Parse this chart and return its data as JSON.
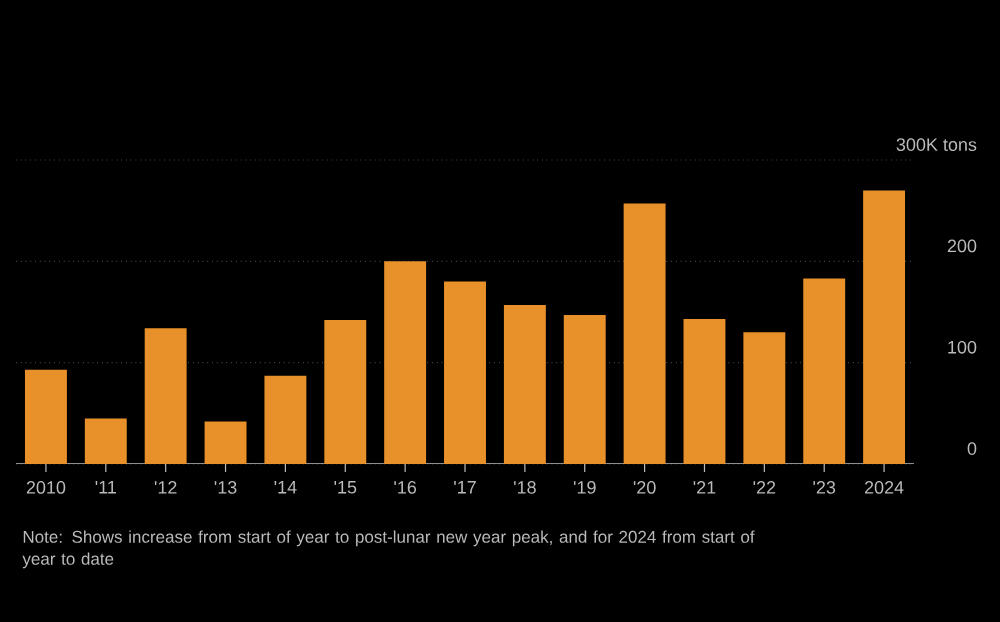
{
  "chart_data": {
    "type": "bar",
    "categories": [
      "2010",
      "'11",
      "'12",
      "'13",
      "'14",
      "'15",
      "'16",
      "'17",
      "'18",
      "'19",
      "'20",
      "'21",
      "'22",
      "'23",
      "2024"
    ],
    "values": [
      93,
      45,
      134,
      42,
      87,
      142,
      200,
      180,
      157,
      147,
      257,
      143,
      130,
      183,
      270
    ],
    "color": "#e8912a",
    "ylim": [
      0,
      300
    ],
    "yticks": [
      0,
      100,
      200,
      {
        "value": 300,
        "label": "300K tons"
      }
    ],
    "grid": "y",
    "annotations": [
      "Note: Shows increase from start of year to post-lunar new year peak, and for 2024 from start of year to date"
    ]
  }
}
